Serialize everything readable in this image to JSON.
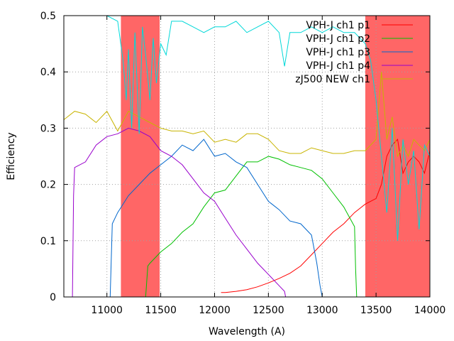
{
  "chart_data": {
    "type": "line",
    "title": "",
    "xlabel": "Wavelength (A)",
    "ylabel": "Efficiency",
    "xlim": [
      10600,
      14000
    ],
    "ylim": [
      0,
      0.5
    ],
    "xticks": [
      11000,
      11500,
      12000,
      12500,
      13000,
      13500,
      14000
    ],
    "yticks": [
      0,
      0.1,
      0.2,
      0.3,
      0.4,
      0.5
    ],
    "xtick_labels": [
      "11000",
      "11500",
      "12000",
      "12500",
      "13000",
      "13500",
      "14000"
    ],
    "ytick_labels": [
      "0",
      "0.1",
      "0.2",
      "0.3",
      "0.4",
      "0.5"
    ],
    "grid": true,
    "legend_position": "top-right",
    "shaded_regions": [
      {
        "x0": 11130,
        "x1": 11490,
        "color": "#ff6666"
      },
      {
        "x0": 13400,
        "x1": 14000,
        "color": "#ff6666"
      }
    ],
    "series": [
      {
        "name": "VPH-J ch1 p1",
        "color": "#ff0000",
        "x": [
          12060,
          12100,
          12200,
          12300,
          12400,
          12500,
          12600,
          12700,
          12800,
          12900,
          13000,
          13100,
          13200,
          13300,
          13400,
          13500,
          13550,
          13600,
          13650,
          13700,
          13750,
          13800,
          13850,
          13900,
          13950,
          14000
        ],
        "y": [
          0.008,
          0.008,
          0.01,
          0.013,
          0.018,
          0.025,
          0.033,
          0.042,
          0.055,
          0.075,
          0.095,
          0.115,
          0.13,
          0.15,
          0.165,
          0.175,
          0.2,
          0.25,
          0.27,
          0.28,
          0.22,
          0.24,
          0.25,
          0.24,
          0.22,
          0.26
        ]
      },
      {
        "name": "VPH-J ch1 p2",
        "color": "#00c000",
        "x": [
          11360,
          11380,
          11400,
          11500,
          11600,
          11700,
          11800,
          11900,
          12000,
          12100,
          12200,
          12300,
          12400,
          12500,
          12600,
          12700,
          12800,
          12900,
          13000,
          13100,
          13200,
          13300,
          13310,
          13320
        ],
        "y": [
          0,
          0.055,
          0.06,
          0.08,
          0.095,
          0.115,
          0.13,
          0.16,
          0.185,
          0.19,
          0.215,
          0.24,
          0.24,
          0.25,
          0.245,
          0.235,
          0.23,
          0.225,
          0.21,
          0.185,
          0.16,
          0.125,
          0.05,
          0
        ]
      },
      {
        "name": "VPH-J ch1 p3",
        "color": "#0066cc",
        "x": [
          11030,
          11050,
          11100,
          11200,
          11300,
          11400,
          11500,
          11600,
          11700,
          11800,
          11900,
          12000,
          12100,
          12200,
          12300,
          12400,
          12500,
          12600,
          12700,
          12800,
          12900,
          12950,
          12980,
          13000
        ],
        "y": [
          0,
          0.13,
          0.15,
          0.18,
          0.2,
          0.22,
          0.235,
          0.25,
          0.27,
          0.26,
          0.28,
          0.25,
          0.255,
          0.24,
          0.23,
          0.2,
          0.17,
          0.155,
          0.135,
          0.13,
          0.11,
          0.06,
          0.02,
          0
        ]
      },
      {
        "name": "VPH-J ch1 p4",
        "color": "#9900cc",
        "x": [
          10680,
          10690,
          10700,
          10800,
          10900,
          11000,
          11100,
          11200,
          11300,
          11400,
          11500,
          11600,
          11700,
          11800,
          11900,
          12000,
          12100,
          12200,
          12300,
          12400,
          12500,
          12600,
          12650,
          12660
        ],
        "y": [
          0,
          0.18,
          0.23,
          0.24,
          0.27,
          0.285,
          0.29,
          0.3,
          0.295,
          0.285,
          0.26,
          0.25,
          0.235,
          0.21,
          0.185,
          0.17,
          0.14,
          0.11,
          0.085,
          0.06,
          0.04,
          0.02,
          0.01,
          0
        ]
      },
      {
        "name": "zJ500 NEW ch1",
        "color": "#c8b400",
        "x": [
          10600,
          10700,
          10800,
          10900,
          11000,
          11100,
          11200,
          11300,
          11400,
          11500,
          11600,
          11700,
          11800,
          11900,
          12000,
          12100,
          12200,
          12300,
          12400,
          12500,
          12600,
          12700,
          12800,
          12900,
          13000,
          13100,
          13200,
          13300,
          13400,
          13500,
          13550,
          13600,
          13650,
          13700,
          13750,
          13800,
          13850,
          13900,
          13950,
          14000
        ],
        "y": [
          0.315,
          0.33,
          0.325,
          0.31,
          0.33,
          0.295,
          0.33,
          0.32,
          0.31,
          0.3,
          0.295,
          0.295,
          0.29,
          0.295,
          0.275,
          0.28,
          0.275,
          0.29,
          0.29,
          0.28,
          0.26,
          0.255,
          0.255,
          0.265,
          0.26,
          0.255,
          0.255,
          0.26,
          0.26,
          0.28,
          0.4,
          0.28,
          0.32,
          0.25,
          0.27,
          0.25,
          0.28,
          0.27,
          0.26,
          0.28
        ]
      },
      {
        "name": "",
        "color": "#00d8d8",
        "x": [
          10600,
          10800,
          11000,
          11100,
          11150,
          11180,
          11200,
          11230,
          11260,
          11300,
          11330,
          11360,
          11400,
          11430,
          11460,
          11500,
          11550,
          11600,
          11700,
          11800,
          11900,
          12000,
          12100,
          12200,
          12300,
          12400,
          12500,
          12600,
          12650,
          12700,
          12800,
          12900,
          13000,
          13100,
          13200,
          13300,
          13400,
          13450,
          13500,
          13550,
          13600,
          13650,
          13700,
          13750,
          13800,
          13850,
          13900,
          13950,
          14000
        ],
        "y": [
          0.5,
          0.5,
          0.5,
          0.49,
          0.42,
          0.35,
          0.44,
          0.3,
          0.47,
          0.29,
          0.48,
          0.43,
          0.35,
          0.46,
          0.38,
          0.45,
          0.43,
          0.49,
          0.49,
          0.48,
          0.47,
          0.48,
          0.48,
          0.49,
          0.47,
          0.48,
          0.49,
          0.47,
          0.41,
          0.47,
          0.47,
          0.48,
          0.47,
          0.48,
          0.47,
          0.47,
          0.45,
          0.42,
          0.35,
          0.25,
          0.15,
          0.3,
          0.1,
          0.28,
          0.2,
          0.26,
          0.12,
          0.27,
          0.25
        ]
      }
    ]
  }
}
